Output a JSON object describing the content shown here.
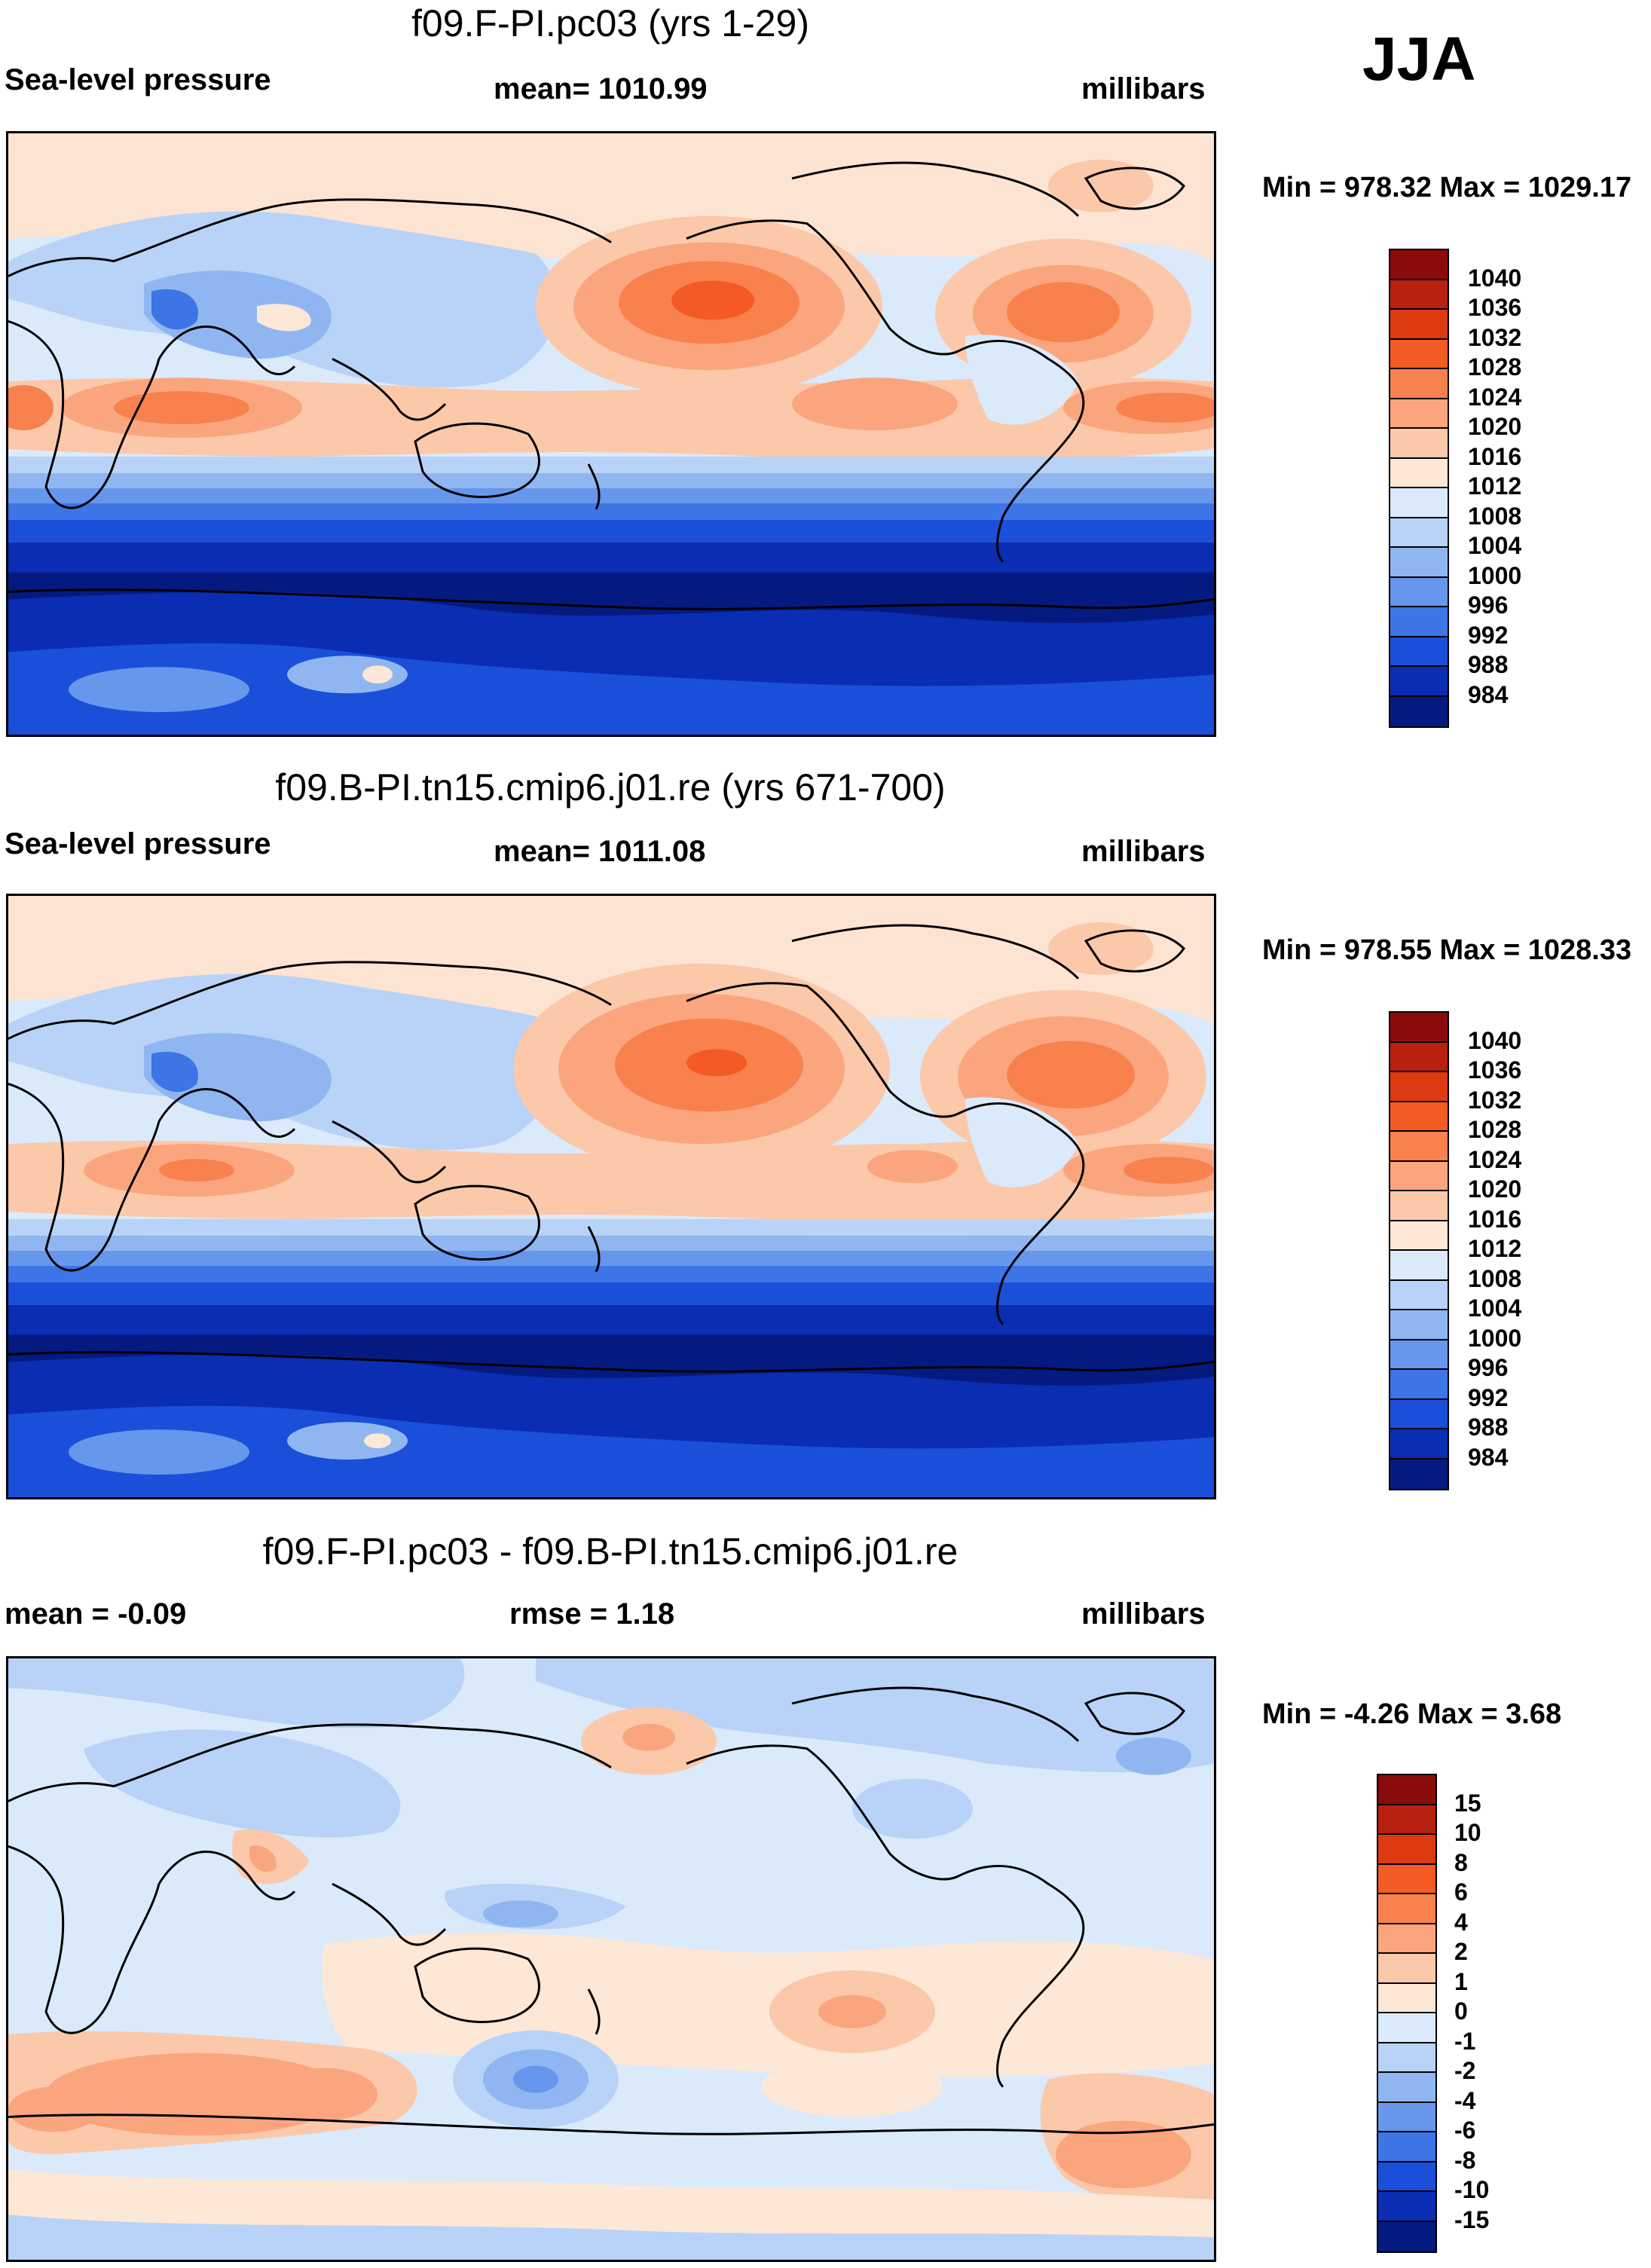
{
  "season": "JJA",
  "panels": [
    {
      "title": "f09.F-PI.pc03 (yrs 1-29)",
      "left": "Sea-level pressure",
      "center": "mean= 1010.99",
      "right": "millibars",
      "minmax": "Min = 978.32 Max = 1029.17",
      "type": "abs"
    },
    {
      "title": "f09.B-PI.tn15.cmip6.j01.re (yrs 671-700)",
      "left": "Sea-level pressure",
      "center": "mean= 1011.08",
      "right": "millibars",
      "minmax": "Min = 978.55 Max = 1028.33",
      "type": "abs2"
    },
    {
      "title": "f09.F-PI.pc03 - f09.B-PI.tn15.cmip6.j01.re",
      "left": "mean =  -0.09",
      "center": "rmse =   1.18",
      "right": "millibars",
      "minmax": "Min =  -4.26 Max =   3.68",
      "type": "diff"
    }
  ],
  "colorbars": {
    "abs": {
      "labels": [
        "1040",
        "1036",
        "1032",
        "1028",
        "1024",
        "1020",
        "1016",
        "1012",
        "1008",
        "1004",
        "1000",
        "996",
        "992",
        "988",
        "984"
      ],
      "colors": [
        "#8a0b0b",
        "#b8200f",
        "#dc3a10",
        "#f45a23",
        "#f8814d",
        "#fba57e",
        "#fcc8aa",
        "#fde7d6",
        "#dbeafb",
        "#b8d3f7",
        "#8fb6f1",
        "#6697ec",
        "#3d74e6",
        "#1a4fd9",
        "#0a2db3",
        "#051a80"
      ]
    },
    "diff": {
      "labels": [
        "15",
        "10",
        "8",
        "6",
        "4",
        "2",
        "1",
        "0",
        "-1",
        "-2",
        "-4",
        "-6",
        "-8",
        "-10",
        "-15"
      ],
      "colors": [
        "#8a0b0b",
        "#b8200f",
        "#dc3a10",
        "#f45a23",
        "#f8814d",
        "#fba57e",
        "#fcc8aa",
        "#fde7d6",
        "#dbeafb",
        "#b8d3f7",
        "#8fb6f1",
        "#6697ec",
        "#3d74e6",
        "#1a4fd9",
        "#0a2db3",
        "#051a80"
      ]
    }
  }
}
